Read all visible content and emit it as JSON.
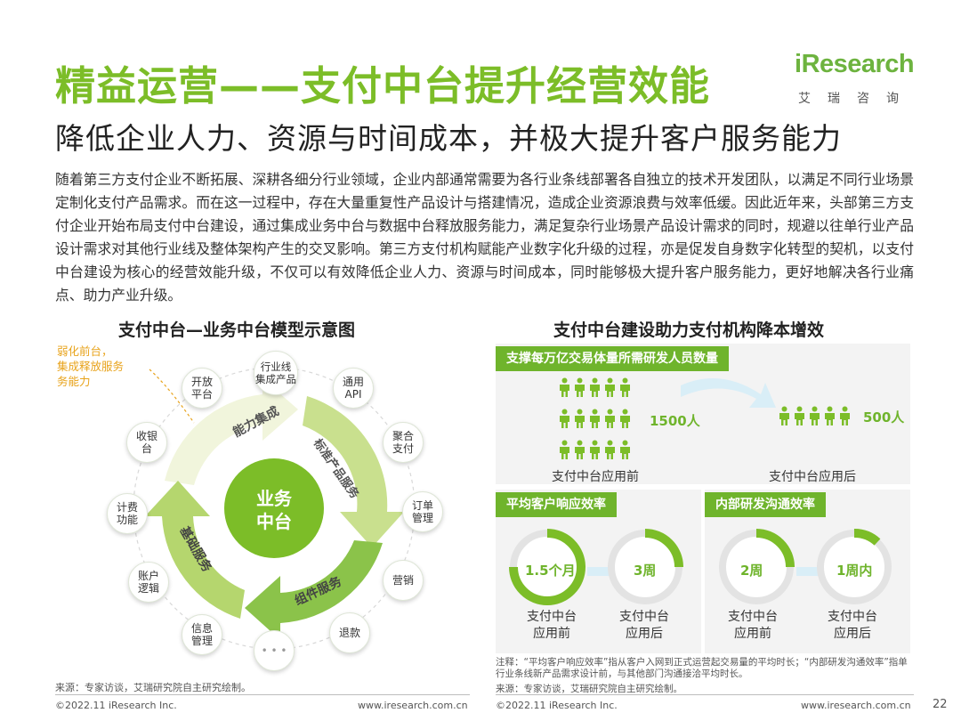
{
  "header": {
    "title": "精益运营——支付中台提升经营效能",
    "subtitle": "降低企业人力、资源与时间成本，并极大提升客户服务能力"
  },
  "logo": {
    "main_i": "i",
    "main_rest": "Research",
    "sub": "艾瑞咨询"
  },
  "body": "随着第三方支付企业不断拓展、深耕各细分行业领域，企业内部通常需要为各行业条线部署各自独立的技术开发团队，以满足不同行业场景定制化支付产品需求。而在这一过程中，存在大量重复性产品设计与搭建情况，造成企业资源浪费与效率低缓。因此近年来，头部第三方支付企业开始布局支付中台建设，通过集成业务中台与数据中台释放服务能力，满足复杂行业场景产品设计需求的同时，规避以往单行业产品设计需求对其他行业线及整体架构产生的交叉影响。第三方支付机构赋能产业数字化升级的过程，亦是促发自身数字化转型的契机，以支付中台建设为核心的经营效能升级，不仅可以有效降低企业人力、资源与时间成本，同时能够极大提升客户服务能力，更好地解决各行业痛点、助力产业升级。",
  "left_chart": {
    "heading": "支付中台—业务中台模型示意图",
    "center": [
      "业务",
      "中台"
    ],
    "arcs": [
      "能力集成",
      "标准产品服务",
      "组件服务",
      "基础服务"
    ],
    "callout": [
      "弱化前台，",
      "集成释放服务",
      "务能力"
    ],
    "nodes": [
      [
        "开放",
        "平台"
      ],
      [
        "行业线",
        "集成产品"
      ],
      [
        "通用",
        "API"
      ],
      [
        "聚合",
        "支付"
      ],
      [
        "订单",
        "管理"
      ],
      [
        "营销"
      ],
      [
        "退款"
      ],
      [
        "• • •"
      ],
      [
        "信息",
        "管理"
      ],
      [
        "账户",
        "逻辑"
      ],
      [
        "计费",
        "功能"
      ],
      [
        "收银",
        "台"
      ]
    ]
  },
  "right_chart": {
    "heading": "支付中台建设助力支付机构降本增效",
    "panel1": {
      "label": "支撑每万亿交易体量所需研发人员数量",
      "before_value": "1500人",
      "after_value": "500人",
      "before_caption": "支付中台应用前",
      "after_caption": "支付中台应用后"
    },
    "panel2": {
      "label": "平均客户响应效率",
      "before_value": "1.5个月",
      "after_value": "3周",
      "before_caption": [
        "支付中台",
        "应用前"
      ],
      "after_caption": [
        "支付中台",
        "应用后"
      ]
    },
    "panel3": {
      "label": "内部研发沟通效率",
      "before_value": "2周",
      "after_value": "1周内",
      "before_caption": [
        "支付中台",
        "应用前"
      ],
      "after_caption": [
        "支付中台",
        "应用后"
      ]
    }
  },
  "notes": {
    "note": "注释：“平均客户响应效率”指从客户入网到正式运营起交易量的平均时长；“内部研发沟通效率”指单行业条线新产品需求设计前，与其他部门沟通接洽平均时长。",
    "source_right": "来源：专家访谈，艾瑞研究院自主研究绘制。",
    "source_left": "来源：专家访谈，艾瑞研究院自主研究绘制。"
  },
  "footer": {
    "copy_left": "©2022.11 iResearch Inc.",
    "url_left": "www.iresearch.com.cn",
    "copy_right": "©2022.11 iResearch Inc.",
    "url_right": "www.iresearch.com.cn",
    "page": "22"
  },
  "colors": {
    "accent": "#6fb42c",
    "title": "#7cbd28",
    "light_green": "#dbe9b9",
    "callout": "#e8a31b"
  }
}
